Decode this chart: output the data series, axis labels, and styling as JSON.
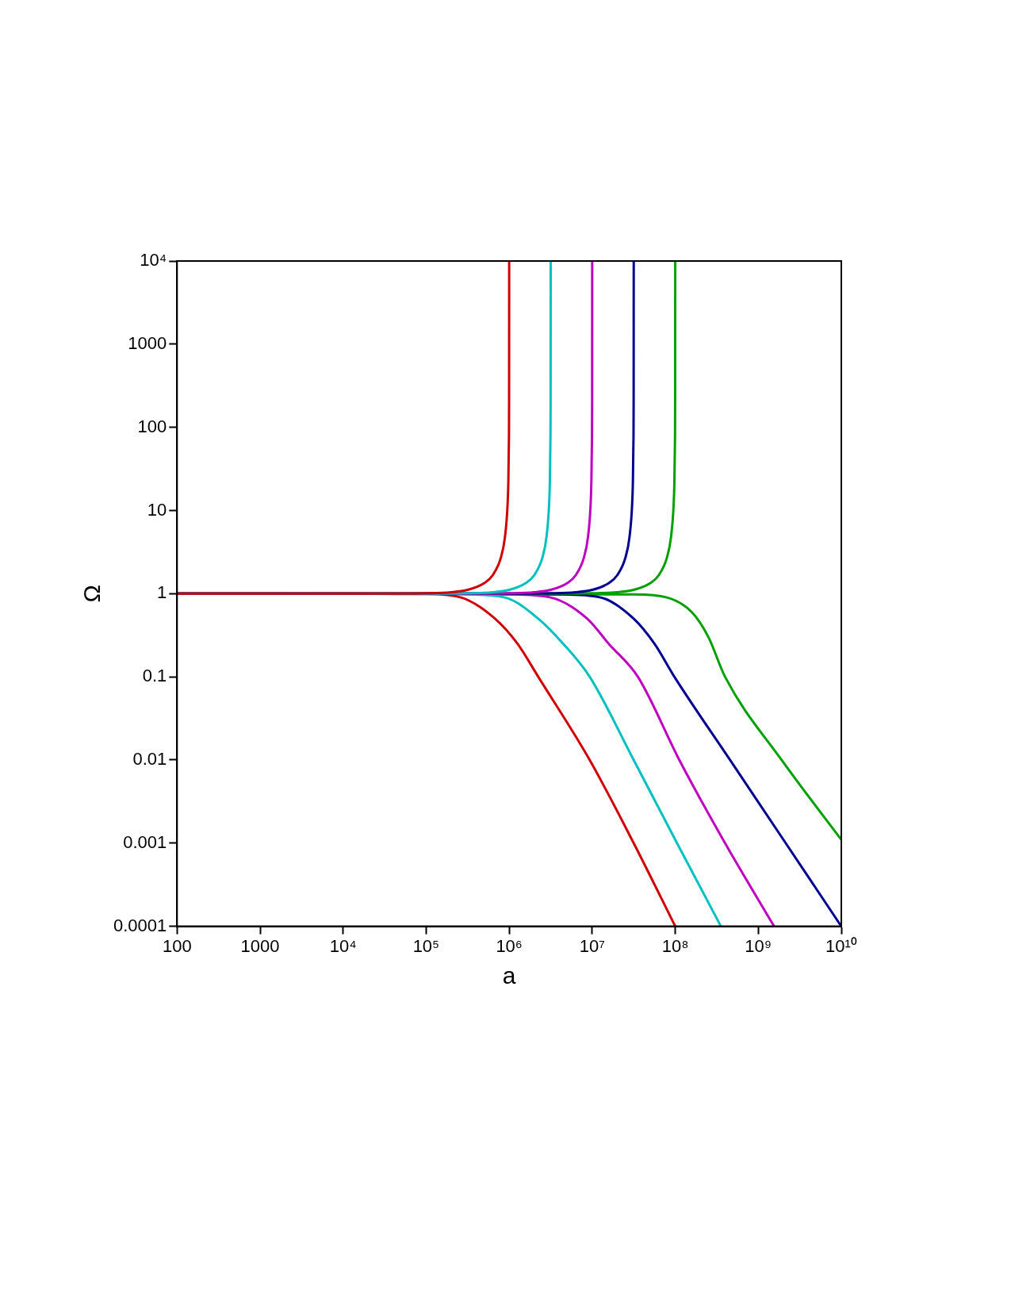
{
  "chart_data": {
    "type": "line",
    "xlabel": "a",
    "ylabel": "Ω",
    "log": "xy",
    "grid": false,
    "legend": false,
    "marker": "none",
    "line_style": "solid",
    "xlim": [
      100,
      10000000000
    ],
    "ylim": [
      0.0001,
      10000
    ],
    "xticks": [
      100,
      1000,
      {
        "value": 10000,
        "label": "10⁴"
      },
      {
        "value": 100000,
        "label": "10⁵"
      },
      {
        "value": 1000000,
        "label": "10⁶"
      },
      {
        "value": 10000000,
        "label": "10⁷"
      },
      {
        "value": 100000000,
        "label": "10⁸"
      },
      {
        "value": 1000000000,
        "label": "10⁹"
      },
      {
        "value": 10000000000,
        "label": "10¹⁰"
      }
    ],
    "yticks": [
      0.0001,
      0.001,
      0.01,
      0.1,
      1,
      10,
      100,
      1000,
      {
        "value": 10000,
        "label": "10⁴"
      }
    ],
    "series": [
      {
        "color": "#d00000",
        "x": [
          100,
          31600,
          100000,
          200000,
          316000,
          501000,
          631000,
          794000,
          891000,
          955000,
          977000,
          993100,
          997700,
          999950
        ],
        "values": [
          1,
          1,
          1.01,
          1.04,
          1.11,
          1.34,
          1.66,
          2.71,
          4.86,
          11.4,
          22.2,
          73,
          217,
          10000
        ]
      },
      {
        "color": "#00c0c0",
        "x": [
          100,
          100000,
          316000,
          632000,
          1000000,
          1584000,
          1995000,
          2512000,
          2818000,
          3020000,
          3090000,
          3140000,
          3155000,
          3162000
        ],
        "values": [
          1,
          1,
          1.01,
          1.04,
          1.11,
          1.34,
          1.66,
          2.71,
          4.86,
          11.4,
          22.2,
          73,
          217,
          10000
        ]
      },
      {
        "color": "#c000c0",
        "x": [
          100,
          316000,
          1000000,
          2000000,
          3160000,
          5010000,
          6310000,
          7940000,
          8910000,
          9550000,
          9770000,
          9931000,
          9977000,
          9999500
        ],
        "values": [
          1,
          1,
          1.01,
          1.04,
          1.11,
          1.34,
          1.66,
          2.71,
          4.86,
          11.4,
          22.2,
          73,
          217,
          10000
        ]
      },
      {
        "color": "#000090",
        "x": [
          100,
          1000000,
          3160000,
          6320000,
          10000000,
          15840000,
          19950000,
          25120000,
          28180000,
          30200000,
          30900000,
          31400000,
          31550000,
          31620000
        ],
        "values": [
          1,
          1,
          1.01,
          1.04,
          1.11,
          1.34,
          1.66,
          2.71,
          4.86,
          11.4,
          22.2,
          73,
          217,
          10000
        ]
      },
      {
        "color": "#00a000",
        "x": [
          100,
          3160000,
          10000000,
          20000000,
          31600000,
          50100000,
          63100000,
          79400000,
          89100000,
          95500000,
          97700000,
          99310000,
          99770000,
          99995000
        ],
        "values": [
          1,
          1,
          1.01,
          1.04,
          1.11,
          1.34,
          1.66,
          2.71,
          4.86,
          11.4,
          22.2,
          73,
          217,
          10000
        ]
      },
      {
        "color": "#d00000",
        "x": [
          100,
          10000,
          100000,
          263000,
          676000,
          1260000,
          2240000,
          9330000,
          31600000,
          100000000
        ],
        "values": [
          1,
          1,
          0.99,
          0.9,
          0.5,
          0.25,
          0.1,
          0.01,
          0.001,
          0.0001
        ]
      },
      {
        "color": "#00c0c0",
        "x": [
          100,
          100000,
          316000,
          891000,
          2240000,
          4470000,
          9330000,
          31600000,
          105000000,
          355000000
        ],
        "values": [
          1,
          1,
          0.98,
          0.9,
          0.5,
          0.25,
          0.1,
          0.01,
          0.001,
          0.0001
        ]
      },
      {
        "color": "#c000c0",
        "x": [
          100,
          100000,
          1000000,
          3160000,
          8710000,
          15800000,
          35500000,
          112000000,
          398000000,
          1550000000
        ],
        "values": [
          1,
          1,
          0.98,
          0.9,
          0.5,
          0.25,
          0.1,
          0.01,
          0.001,
          0.0001
        ]
      },
      {
        "color": "#000090",
        "x": [
          100,
          316000,
          3980000,
          12600000,
          31600000,
          56200000,
          97700000,
          457000000,
          2140000000,
          10000000000
        ],
        "values": [
          1,
          1,
          0.98,
          0.9,
          0.5,
          0.25,
          0.1,
          0.01,
          0.001,
          0.0001
        ]
      },
      {
        "color": "#00a000",
        "x": [
          100,
          31600000,
          79400000,
          158000000,
          251000000,
          398000000,
          1910000000,
          10000000000
        ],
        "values": [
          1,
          0.98,
          0.9,
          0.6,
          0.3,
          0.1,
          0.01,
          0.0011
        ]
      }
    ]
  }
}
